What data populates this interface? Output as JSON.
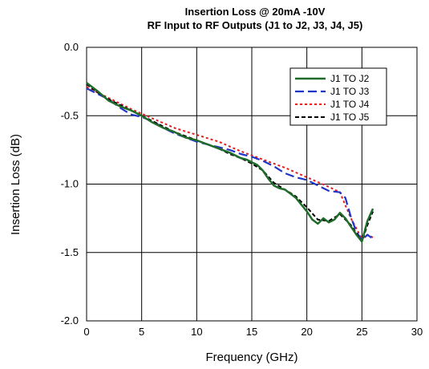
{
  "chart_data": {
    "type": "line",
    "title": "Insertion Loss @ 20mA -10V",
    "subtitle": "RF Input to RF Outputs (J1 to J2, J3, J4, J5)",
    "xlabel": "Frequency (GHz)",
    "ylabel": "Insertion Loss (dB)",
    "xlim": [
      0,
      30
    ],
    "ylim": [
      -2.0,
      0.0
    ],
    "xticks": [
      0,
      5,
      10,
      15,
      20,
      25,
      30
    ],
    "xtick_labels": [
      "0",
      "5",
      "10",
      "15",
      "20",
      "25",
      "30"
    ],
    "yticks": [
      0.0,
      -0.5,
      -1.0,
      -1.5,
      -2.0
    ],
    "ytick_labels": [
      "0.0",
      "-0.5",
      "-1.0",
      "-1.5",
      "-2.0"
    ],
    "grid": true,
    "legend_position": "top-right",
    "series": [
      {
        "name": "J1 TO J2",
        "color": "#1f6b2a",
        "dash": "solid",
        "x": [
          0,
          1,
          2,
          3,
          4,
          5,
          6,
          7,
          8,
          9,
          10,
          11,
          12,
          13,
          14,
          14.5,
          15,
          15.5,
          16,
          16.5,
          17,
          17.5,
          18,
          18.5,
          19,
          19.5,
          20,
          20.5,
          21,
          21.5,
          22,
          22.5,
          23,
          23.5,
          24,
          24.5,
          25,
          25.5,
          26
        ],
        "y": [
          -0.26,
          -0.32,
          -0.39,
          -0.43,
          -0.46,
          -0.5,
          -0.55,
          -0.59,
          -0.62,
          -0.66,
          -0.68,
          -0.71,
          -0.74,
          -0.77,
          -0.81,
          -0.82,
          -0.84,
          -0.86,
          -0.9,
          -0.96,
          -1.01,
          -1.03,
          -1.04,
          -1.07,
          -1.1,
          -1.15,
          -1.2,
          -1.26,
          -1.29,
          -1.25,
          -1.28,
          -1.26,
          -1.21,
          -1.25,
          -1.31,
          -1.37,
          -1.42,
          -1.27,
          -1.18
        ]
      },
      {
        "name": "J1 TO J3",
        "color": "#1f35c8",
        "dash": "long-dash",
        "x": [
          0,
          1,
          2,
          3,
          4,
          5,
          6,
          7,
          8,
          9,
          10,
          11,
          12,
          13,
          14,
          15,
          16,
          17,
          18,
          19,
          20,
          21,
          22,
          23,
          23.5,
          24,
          24.5,
          25,
          25.5,
          26
        ],
        "y": [
          -0.3,
          -0.34,
          -0.38,
          -0.44,
          -0.49,
          -0.51,
          -0.54,
          -0.59,
          -0.63,
          -0.66,
          -0.69,
          -0.71,
          -0.73,
          -0.75,
          -0.78,
          -0.8,
          -0.83,
          -0.87,
          -0.92,
          -0.95,
          -0.97,
          -1.01,
          -1.05,
          -1.06,
          -1.1,
          -1.24,
          -1.35,
          -1.41,
          -1.37,
          -1.4
        ]
      },
      {
        "name": "J1 TO J4",
        "color": "#e02020",
        "dash": "dotted",
        "x": [
          0,
          2,
          4,
          6,
          8,
          10,
          12,
          14,
          16,
          18,
          20,
          22,
          23,
          24,
          25,
          25.5,
          26
        ],
        "y": [
          -0.29,
          -0.37,
          -0.45,
          -0.52,
          -0.59,
          -0.64,
          -0.69,
          -0.76,
          -0.82,
          -0.88,
          -0.95,
          -1.02,
          -1.06,
          -1.25,
          -1.4,
          -1.37,
          -1.39
        ]
      },
      {
        "name": "J1 TO J5",
        "color": "#000000",
        "dash": "short-dash",
        "x": [
          0,
          1,
          2,
          3,
          4,
          5,
          6,
          7,
          8,
          9,
          10,
          11,
          12,
          13,
          14,
          15,
          16,
          17,
          18,
          19,
          20,
          21,
          22,
          23,
          24,
          25,
          25.5,
          26
        ],
        "y": [
          -0.27,
          -0.33,
          -0.38,
          -0.42,
          -0.46,
          -0.5,
          -0.54,
          -0.58,
          -0.62,
          -0.65,
          -0.68,
          -0.71,
          -0.74,
          -0.78,
          -0.81,
          -0.85,
          -0.9,
          -0.99,
          -1.04,
          -1.09,
          -1.17,
          -1.26,
          -1.27,
          -1.22,
          -1.3,
          -1.42,
          -1.3,
          -1.2
        ]
      }
    ]
  }
}
